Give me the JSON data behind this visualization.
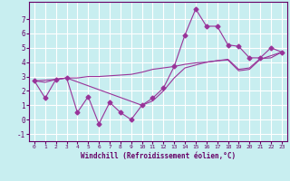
{
  "bg_color": "#c8eef0",
  "grid_color": "#ffffff",
  "line_color": "#993399",
  "xlabel": "Windchill (Refroidissement éolien,°C)",
  "xlim": [
    -0.5,
    23.5
  ],
  "ylim": [
    -1.5,
    8.2
  ],
  "xticks": [
    0,
    1,
    2,
    3,
    4,
    5,
    6,
    7,
    8,
    9,
    10,
    11,
    12,
    13,
    14,
    15,
    16,
    17,
    18,
    19,
    20,
    21,
    22,
    23
  ],
  "yticks": [
    -1,
    0,
    1,
    2,
    3,
    4,
    5,
    6,
    7
  ],
  "jagged_x": [
    0,
    1,
    2,
    3,
    4,
    5,
    6,
    7,
    8,
    9,
    10,
    11,
    12,
    13,
    14,
    15,
    16,
    17,
    18,
    19,
    20,
    21,
    22,
    23
  ],
  "jagged_y": [
    2.7,
    1.5,
    2.8,
    2.9,
    0.5,
    1.6,
    -0.3,
    1.2,
    0.5,
    0.0,
    1.0,
    1.5,
    2.2,
    3.7,
    5.9,
    7.7,
    6.5,
    6.5,
    5.2,
    5.1,
    4.3,
    4.3,
    5.0,
    4.7
  ],
  "upper_x": [
    0,
    1,
    2,
    3,
    4,
    5,
    6,
    7,
    8,
    9,
    10,
    11,
    12,
    13,
    14,
    15,
    16,
    17,
    18,
    19,
    20,
    21,
    22,
    23
  ],
  "upper_y": [
    2.7,
    2.6,
    2.8,
    2.9,
    2.9,
    3.0,
    3.0,
    3.05,
    3.1,
    3.15,
    3.3,
    3.5,
    3.6,
    3.7,
    3.85,
    3.95,
    4.0,
    4.1,
    4.2,
    3.5,
    3.6,
    4.25,
    4.3,
    4.7
  ],
  "lower_x": [
    0,
    2,
    3,
    10,
    11,
    12,
    13,
    14,
    15,
    16,
    17,
    18,
    19,
    20,
    21,
    22,
    23
  ],
  "lower_y": [
    2.7,
    2.8,
    2.9,
    1.0,
    1.3,
    2.0,
    2.9,
    3.6,
    3.8,
    4.0,
    4.1,
    4.15,
    3.4,
    3.5,
    4.2,
    4.45,
    4.7
  ]
}
